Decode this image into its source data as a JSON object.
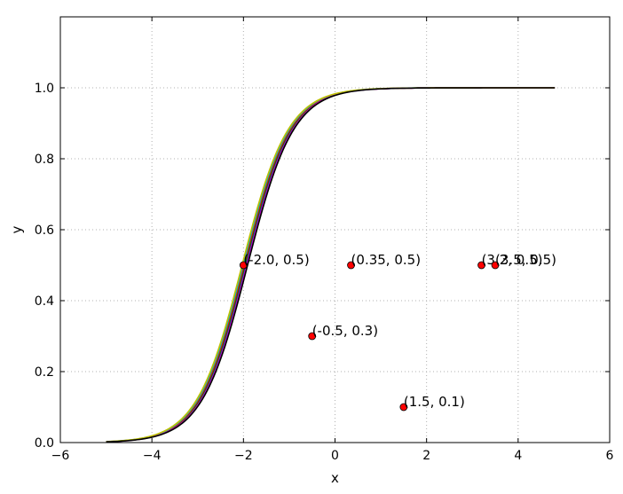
{
  "chart_data": {
    "type": "line",
    "title": "",
    "xlabel": "x",
    "ylabel": "y",
    "xlim": [
      -6,
      6
    ],
    "ylim": [
      0,
      1.2
    ],
    "xticks": [
      -6,
      -4,
      -2,
      0,
      2,
      4,
      6
    ],
    "yticks": [
      0,
      0.2,
      0.4,
      0.6,
      0.8,
      1.0
    ],
    "xtick_labels": [
      "−6",
      "−4",
      "−2",
      "0",
      "2",
      "4",
      "6"
    ],
    "ytick_labels": [
      "0.0",
      "0.2",
      "0.4",
      "0.6",
      "0.8",
      "1.0"
    ],
    "grid": true,
    "curve_x_range": [
      -5,
      4.8
    ],
    "series": [
      {
        "color": "#1f1fd0",
        "center": -1.95,
        "scale": 0.5
      },
      {
        "color": "#008000",
        "center": -1.97,
        "scale": 0.5
      },
      {
        "color": "#ff0000",
        "center": -1.99,
        "scale": 0.5
      },
      {
        "color": "#00bfbf",
        "center": -2.01,
        "scale": 0.5
      },
      {
        "color": "#bf00bf",
        "center": -1.93,
        "scale": 0.5
      },
      {
        "color": "#bfbf00",
        "center": -2.03,
        "scale": 0.5
      },
      {
        "color": "#000000",
        "center": -1.91,
        "scale": 0.5
      }
    ],
    "points": [
      {
        "x": -2.0,
        "y": 0.5,
        "label": "(-2.0, 0.5)"
      },
      {
        "x": 0.35,
        "y": 0.5,
        "label": "(0.35, 0.5)"
      },
      {
        "x": 3.2,
        "y": 0.5,
        "label": "(3.2, 0.5)"
      },
      {
        "x": 3.5,
        "y": 0.5,
        "label": "(3.5, 0.5)"
      },
      {
        "x": -0.5,
        "y": 0.3,
        "label": "(-0.5, 0.3)"
      },
      {
        "x": 1.5,
        "y": 0.1,
        "label": "(1.5, 0.1)"
      }
    ],
    "point_color": "#ff0000"
  }
}
